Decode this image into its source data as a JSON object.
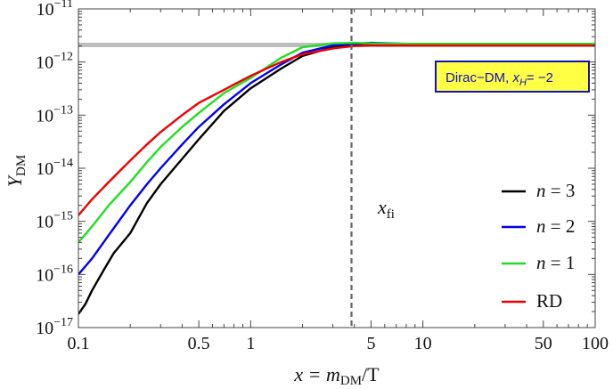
{
  "chart_data": {
    "type": "line",
    "xlabel": {
      "pre": "x = m",
      "sub": "DM",
      "post": "/T"
    },
    "ylabel": {
      "main": "Y",
      "sub": "DM"
    },
    "xscale": "log",
    "yscale": "log",
    "xlim": [
      0.1,
      100
    ],
    "ylim": [
      1e-17,
      1e-11
    ],
    "x_ticks": [
      {
        "value": 0.1,
        "label": "0.1"
      },
      {
        "value": 0.5,
        "label": "0.5"
      },
      {
        "value": 1,
        "label": "1"
      },
      {
        "value": 5,
        "label": "5"
      },
      {
        "value": 10,
        "label": "10"
      },
      {
        "value": 50,
        "label": "50"
      },
      {
        "value": 100,
        "label": "100"
      }
    ],
    "y_ticks": [
      {
        "value": 1e-17,
        "base": "10",
        "exp": "−17"
      },
      {
        "value": 1e-16,
        "base": "10",
        "exp": "−16"
      },
      {
        "value": 1e-15,
        "base": "10",
        "exp": "−15"
      },
      {
        "value": 1e-14,
        "base": "10",
        "exp": "−14"
      },
      {
        "value": 1e-13,
        "base": "10",
        "exp": "−13"
      },
      {
        "value": 1e-12,
        "base": "10",
        "exp": "−12"
      },
      {
        "value": 1e-11,
        "base": "10",
        "exp": "−11"
      }
    ],
    "reference_line": {
      "y": 2.1e-12,
      "color": "#bdbdbd"
    },
    "vertical_line": {
      "x": 3.85,
      "color": "#666666",
      "annotation": {
        "main": "x",
        "sub": "fi"
      }
    },
    "series": [
      {
        "name": "n = 3",
        "color": "#000000",
        "x": [
          0.1,
          0.11,
          0.12,
          0.14,
          0.16,
          0.2,
          0.25,
          0.3,
          0.4,
          0.5,
          0.7,
          1.0,
          1.5,
          2.0,
          3.0,
          4.0,
          5.0,
          6.0,
          8.0,
          10,
          20,
          50,
          100
        ],
        "y": [
          1.8e-17,
          2.8e-17,
          5e-17,
          1.2e-16,
          2.5e-16,
          6e-16,
          2.2e-15,
          5e-15,
          1.5e-14,
          3.5e-14,
          1.2e-13,
          3.2e-13,
          7.5e-13,
          1.3e-12,
          1.9e-12,
          2.15e-12,
          2.25e-12,
          2.2e-12,
          2.15e-12,
          2.15e-12,
          2.15e-12,
          2.15e-12,
          2.15e-12
        ]
      },
      {
        "name": "n = 2",
        "color": "#0000ee",
        "x": [
          0.1,
          0.12,
          0.15,
          0.2,
          0.25,
          0.3,
          0.4,
          0.5,
          0.7,
          1.0,
          1.5,
          2.0,
          3.0,
          4.0,
          5.0,
          6.0,
          8.0,
          10,
          20,
          50,
          100
        ],
        "y": [
          1e-16,
          2e-16,
          5.5e-16,
          2e-15,
          5e-15,
          1e-14,
          2.8e-14,
          6e-14,
          1.6e-13,
          4e-13,
          9e-13,
          1.5e-12,
          2.05e-12,
          2.2e-12,
          2.3e-12,
          2.25e-12,
          2.2e-12,
          2.2e-12,
          2.2e-12,
          2.2e-12,
          2.2e-12
        ]
      },
      {
        "name": "n = 1",
        "color": "#22dd22",
        "x": [
          0.1,
          0.12,
          0.15,
          0.2,
          0.25,
          0.3,
          0.4,
          0.5,
          0.7,
          1.0,
          1.5,
          2.0,
          3.0,
          4.0,
          5.0,
          6.0,
          8.0,
          10,
          20,
          50,
          100
        ],
        "y": [
          4e-16,
          8e-16,
          2e-15,
          5.5e-15,
          1.3e-14,
          2.5e-14,
          6e-14,
          1.1e-13,
          2.6e-13,
          5e-13,
          1.2e-12,
          1.9e-12,
          2.25e-12,
          2.3e-12,
          2.25e-12,
          2.2e-12,
          2.2e-12,
          2.2e-12,
          2.2e-12,
          2.2e-12,
          2.2e-12
        ]
      },
      {
        "name": "RD",
        "color": "#ee0000",
        "x": [
          0.1,
          0.12,
          0.15,
          0.2,
          0.25,
          0.3,
          0.4,
          0.5,
          0.7,
          1.0,
          1.5,
          2.0,
          3.0,
          4.0,
          5.0,
          6.0,
          8.0,
          10,
          20,
          50,
          100
        ],
        "y": [
          1.3e-15,
          2.6e-15,
          5.5e-15,
          1.4e-14,
          2.8e-14,
          4.8e-14,
          1e-13,
          1.7e-13,
          3e-13,
          5.5e-13,
          1e-12,
          1.4e-12,
          1.8e-12,
          2e-12,
          2.05e-12,
          2.05e-12,
          2.05e-12,
          2.05e-12,
          2.05e-12,
          2.05e-12,
          2.05e-12
        ]
      }
    ],
    "legend": {
      "position": "right",
      "entries": [
        "n = 3",
        "n = 2",
        "n = 1",
        "RD"
      ]
    },
    "info_box": {
      "text": "Dirac−DM, ",
      "var": "x",
      "var_sub": "H",
      "value": "= −2",
      "bg": "#ffff44",
      "border": "#1111bb",
      "text_color": "#1111bb"
    }
  }
}
